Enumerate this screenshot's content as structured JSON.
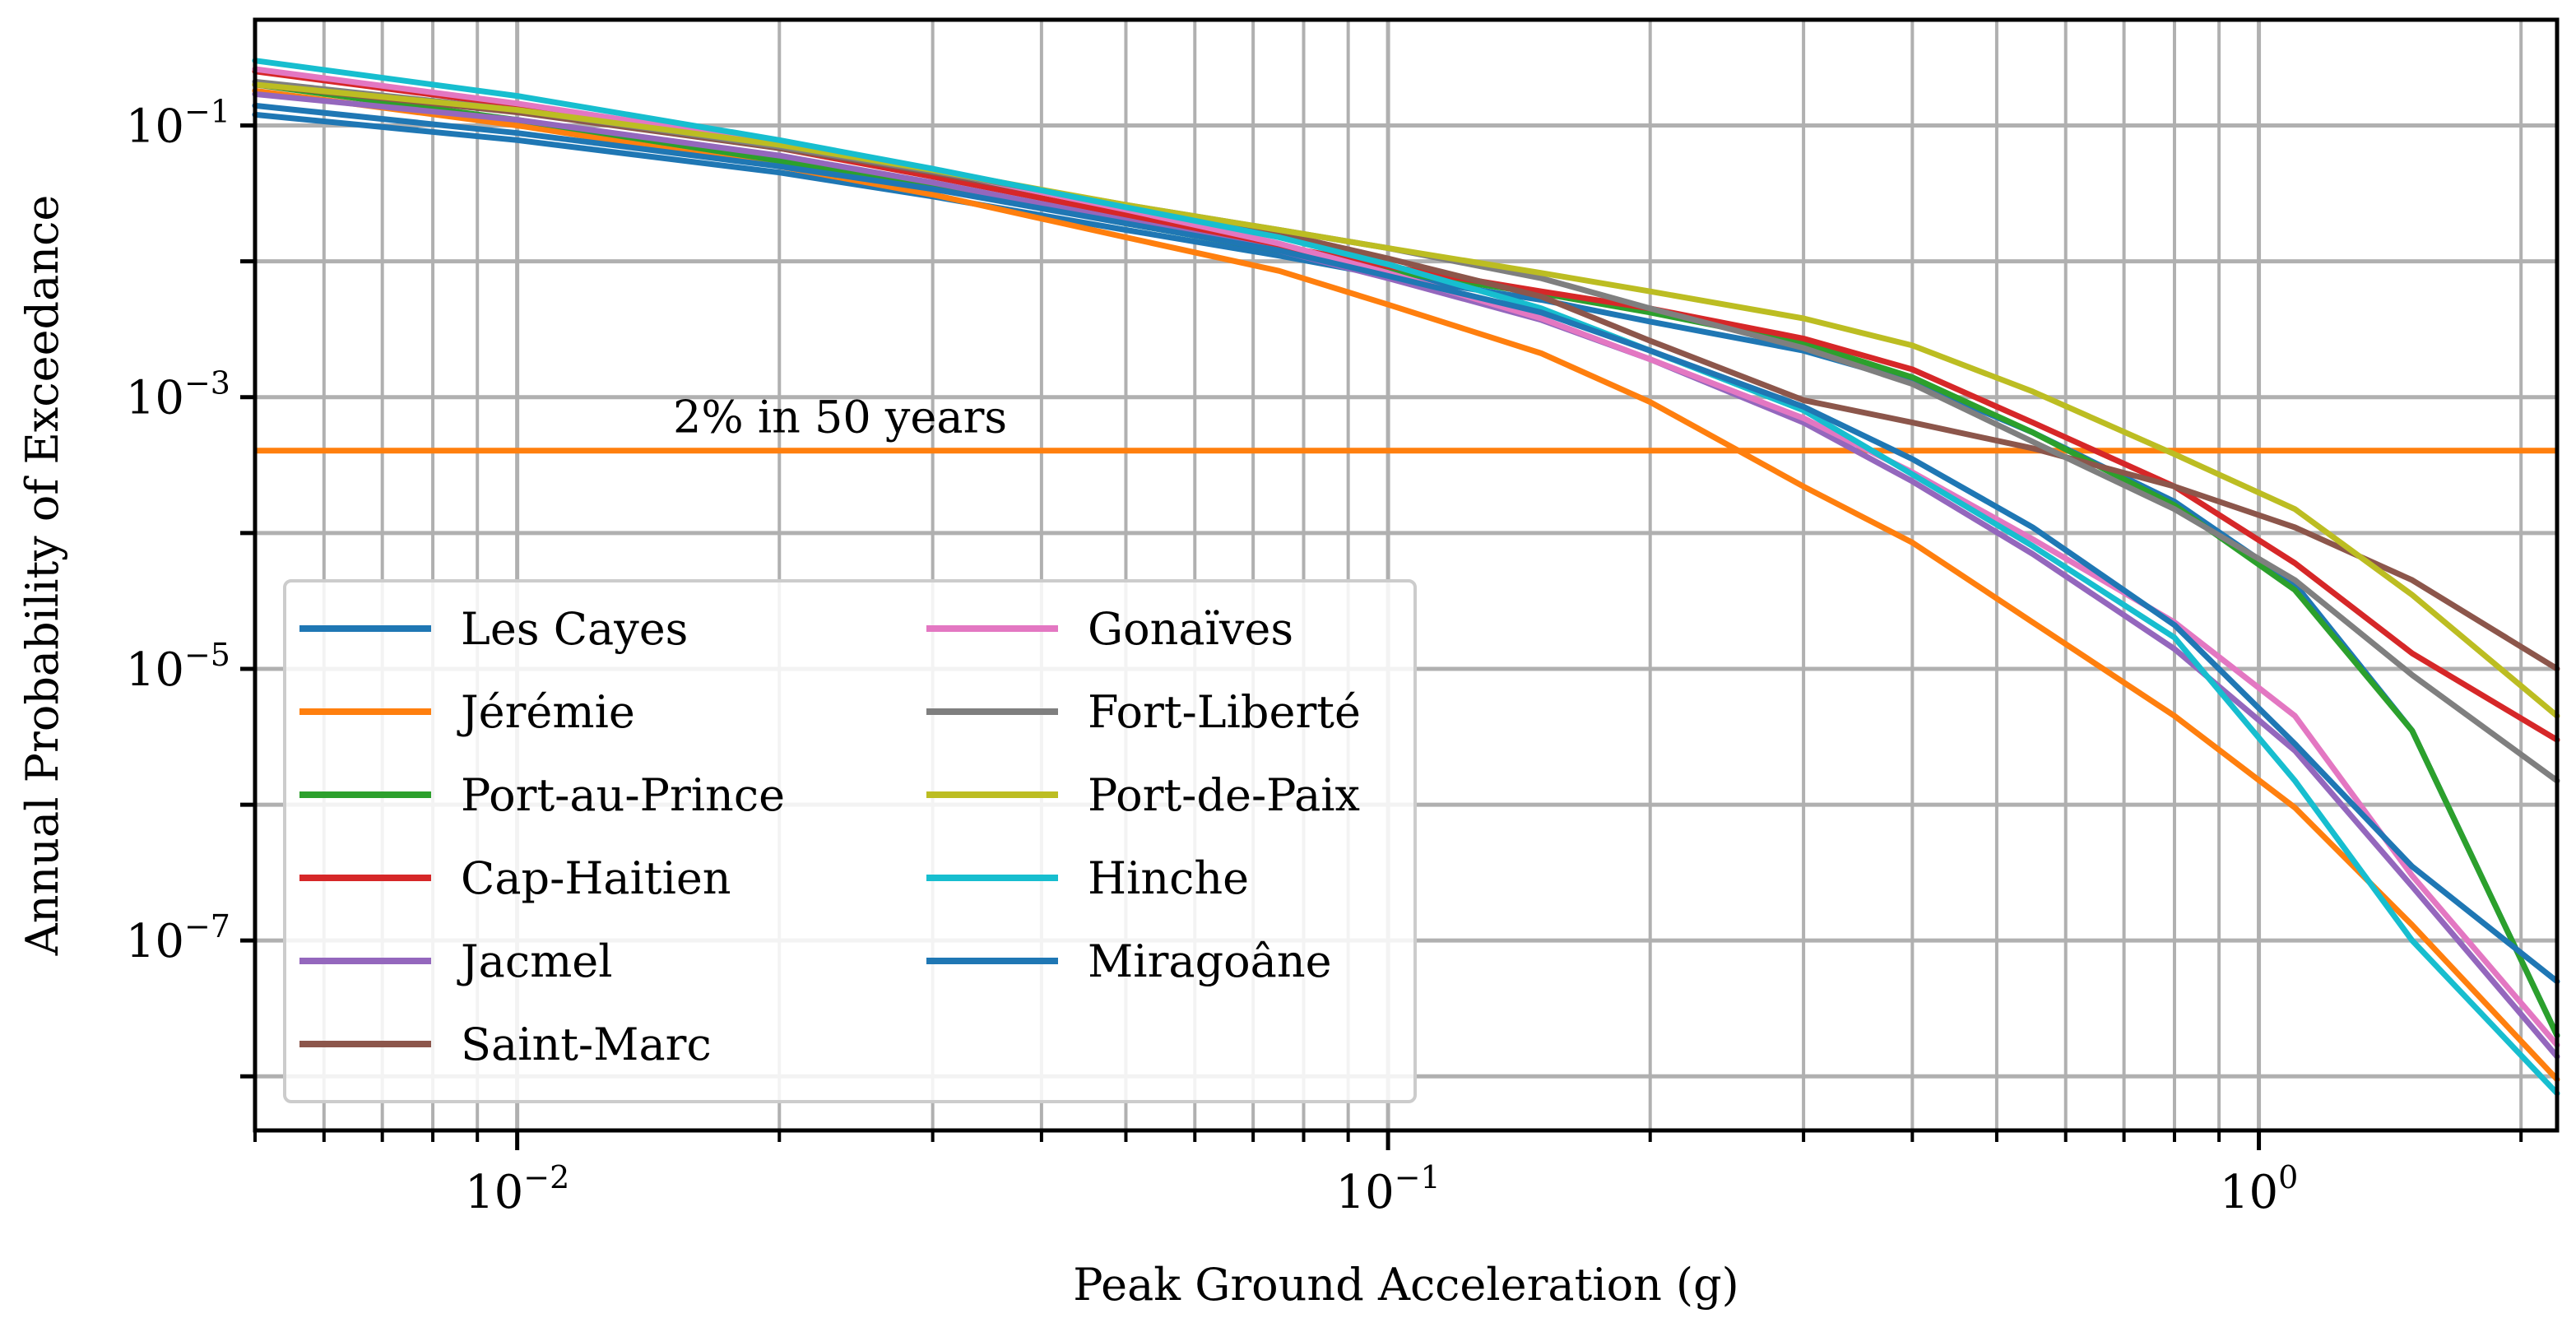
{
  "chart_data": {
    "type": "line",
    "title": "",
    "xlabel": "Peak Ground Acceleration (g)",
    "ylabel": "Annual Probability of Exceedance",
    "xscale": "log",
    "yscale": "log",
    "xlim": [
      0.005,
      2.2
    ],
    "ylim": [
      4e-09,
      0.6
    ],
    "grid": "both major and minor",
    "legend_position": "lower-left",
    "legend_columns": 2,
    "x_ticks": [
      {
        "value": 0.01,
        "base": "10",
        "exp": "−2"
      },
      {
        "value": 0.1,
        "base": "10",
        "exp": "−1"
      },
      {
        "value": 1,
        "base": "10",
        "exp": "0"
      }
    ],
    "y_ticks": [
      {
        "value": 0.1,
        "base": "10",
        "exp": "−1"
      },
      {
        "value": 0.001,
        "base": "10",
        "exp": "−3"
      },
      {
        "value": 1e-05,
        "base": "10",
        "exp": "−5"
      },
      {
        "value": 1e-07,
        "base": "10",
        "exp": "−7"
      }
    ],
    "reference_line": {
      "y": 0.000404,
      "label": "2% in 50 years",
      "color": "#ff7f0e"
    },
    "x": [
      0.005,
      0.01,
      0.02,
      0.03,
      0.05,
      0.075,
      0.1,
      0.15,
      0.2,
      0.3,
      0.4,
      0.55,
      0.8,
      1.1,
      1.5,
      2.2
    ],
    "series": [
      {
        "name": "Les Cayes",
        "color": "#1f77b4",
        "values": [
          0.12,
          0.078,
          0.045,
          0.03,
          0.017,
          0.011,
          0.0078,
          0.0052,
          0.0036,
          0.0022,
          0.0013,
          0.00055,
          0.00017,
          4.2e-05,
          3.5e-06,
          2e-08
        ]
      },
      {
        "name": "Jérémie",
        "color": "#ff7f0e",
        "values": [
          0.18,
          0.1,
          0.05,
          0.031,
          0.015,
          0.0085,
          0.0048,
          0.0021,
          0.00092,
          0.00022,
          8.5e-05,
          2.2e-05,
          4.5e-06,
          9.5e-07,
          1.3e-07,
          9.5e-09
        ]
      },
      {
        "name": "Port-au-Prince",
        "color": "#2ca02c",
        "values": [
          0.2,
          0.11,
          0.055,
          0.035,
          0.019,
          0.012,
          0.0085,
          0.0058,
          0.0042,
          0.0025,
          0.0014,
          0.00055,
          0.00016,
          3.8e-05,
          3.5e-06,
          2e-08
        ]
      },
      {
        "name": "Cap-Haitien",
        "color": "#d62728",
        "values": [
          0.25,
          0.14,
          0.068,
          0.042,
          0.022,
          0.013,
          0.0092,
          0.006,
          0.0045,
          0.0027,
          0.0016,
          0.00065,
          0.00022,
          6e-05,
          1.3e-05,
          3e-06
        ]
      },
      {
        "name": "Jacmel",
        "color": "#9467bd",
        "values": [
          0.17,
          0.11,
          0.06,
          0.038,
          0.02,
          0.012,
          0.0075,
          0.0037,
          0.0019,
          0.00065,
          0.00024,
          7e-05,
          1.4e-05,
          2.5e-06,
          2.5e-07,
          1.4e-08
        ]
      },
      {
        "name": "Saint-Marc",
        "color": "#8c564b",
        "values": [
          0.2,
          0.125,
          0.068,
          0.045,
          0.025,
          0.016,
          0.0105,
          0.0055,
          0.0026,
          0.00095,
          0.00065,
          0.00042,
          0.00022,
          0.00011,
          4.5e-05,
          1e-05
        ]
      },
      {
        "name": "Gonaïves",
        "color": "#e377c2",
        "values": [
          0.26,
          0.145,
          0.074,
          0.047,
          0.024,
          0.0135,
          0.0082,
          0.0038,
          0.0019,
          0.0007,
          0.00028,
          9e-05,
          2.2e-05,
          4.5e-06,
          3e-07,
          1.7e-08
        ]
      },
      {
        "name": "Fort-Liberté",
        "color": "#7f7f7f",
        "values": [
          0.21,
          0.13,
          0.07,
          0.046,
          0.026,
          0.017,
          0.0125,
          0.0075,
          0.0045,
          0.0023,
          0.00125,
          0.00047,
          0.00015,
          4.5e-05,
          9e-06,
          1.5e-06
        ]
      },
      {
        "name": "Port-de-Paix",
        "color": "#bcbd22",
        "values": [
          0.2,
          0.13,
          0.072,
          0.047,
          0.026,
          0.017,
          0.0125,
          0.0082,
          0.006,
          0.0038,
          0.0024,
          0.0011,
          0.00038,
          0.00015,
          3.5e-05,
          4.5e-06
        ]
      },
      {
        "name": "Hinche",
        "color": "#17becf",
        "values": [
          0.3,
          0.165,
          0.078,
          0.048,
          0.025,
          0.015,
          0.0095,
          0.0045,
          0.0022,
          0.0008,
          0.00027,
          8e-05,
          1.7e-05,
          1.5e-06,
          1e-07,
          7.5e-09
        ]
      },
      {
        "name": "Miragoâne",
        "color": "#1f77b4",
        "values": [
          0.14,
          0.088,
          0.05,
          0.034,
          0.019,
          0.012,
          0.0078,
          0.0042,
          0.0022,
          0.00085,
          0.00035,
          0.00011,
          2.1e-05,
          2.8e-06,
          3.5e-07,
          5e-08
        ]
      }
    ]
  }
}
